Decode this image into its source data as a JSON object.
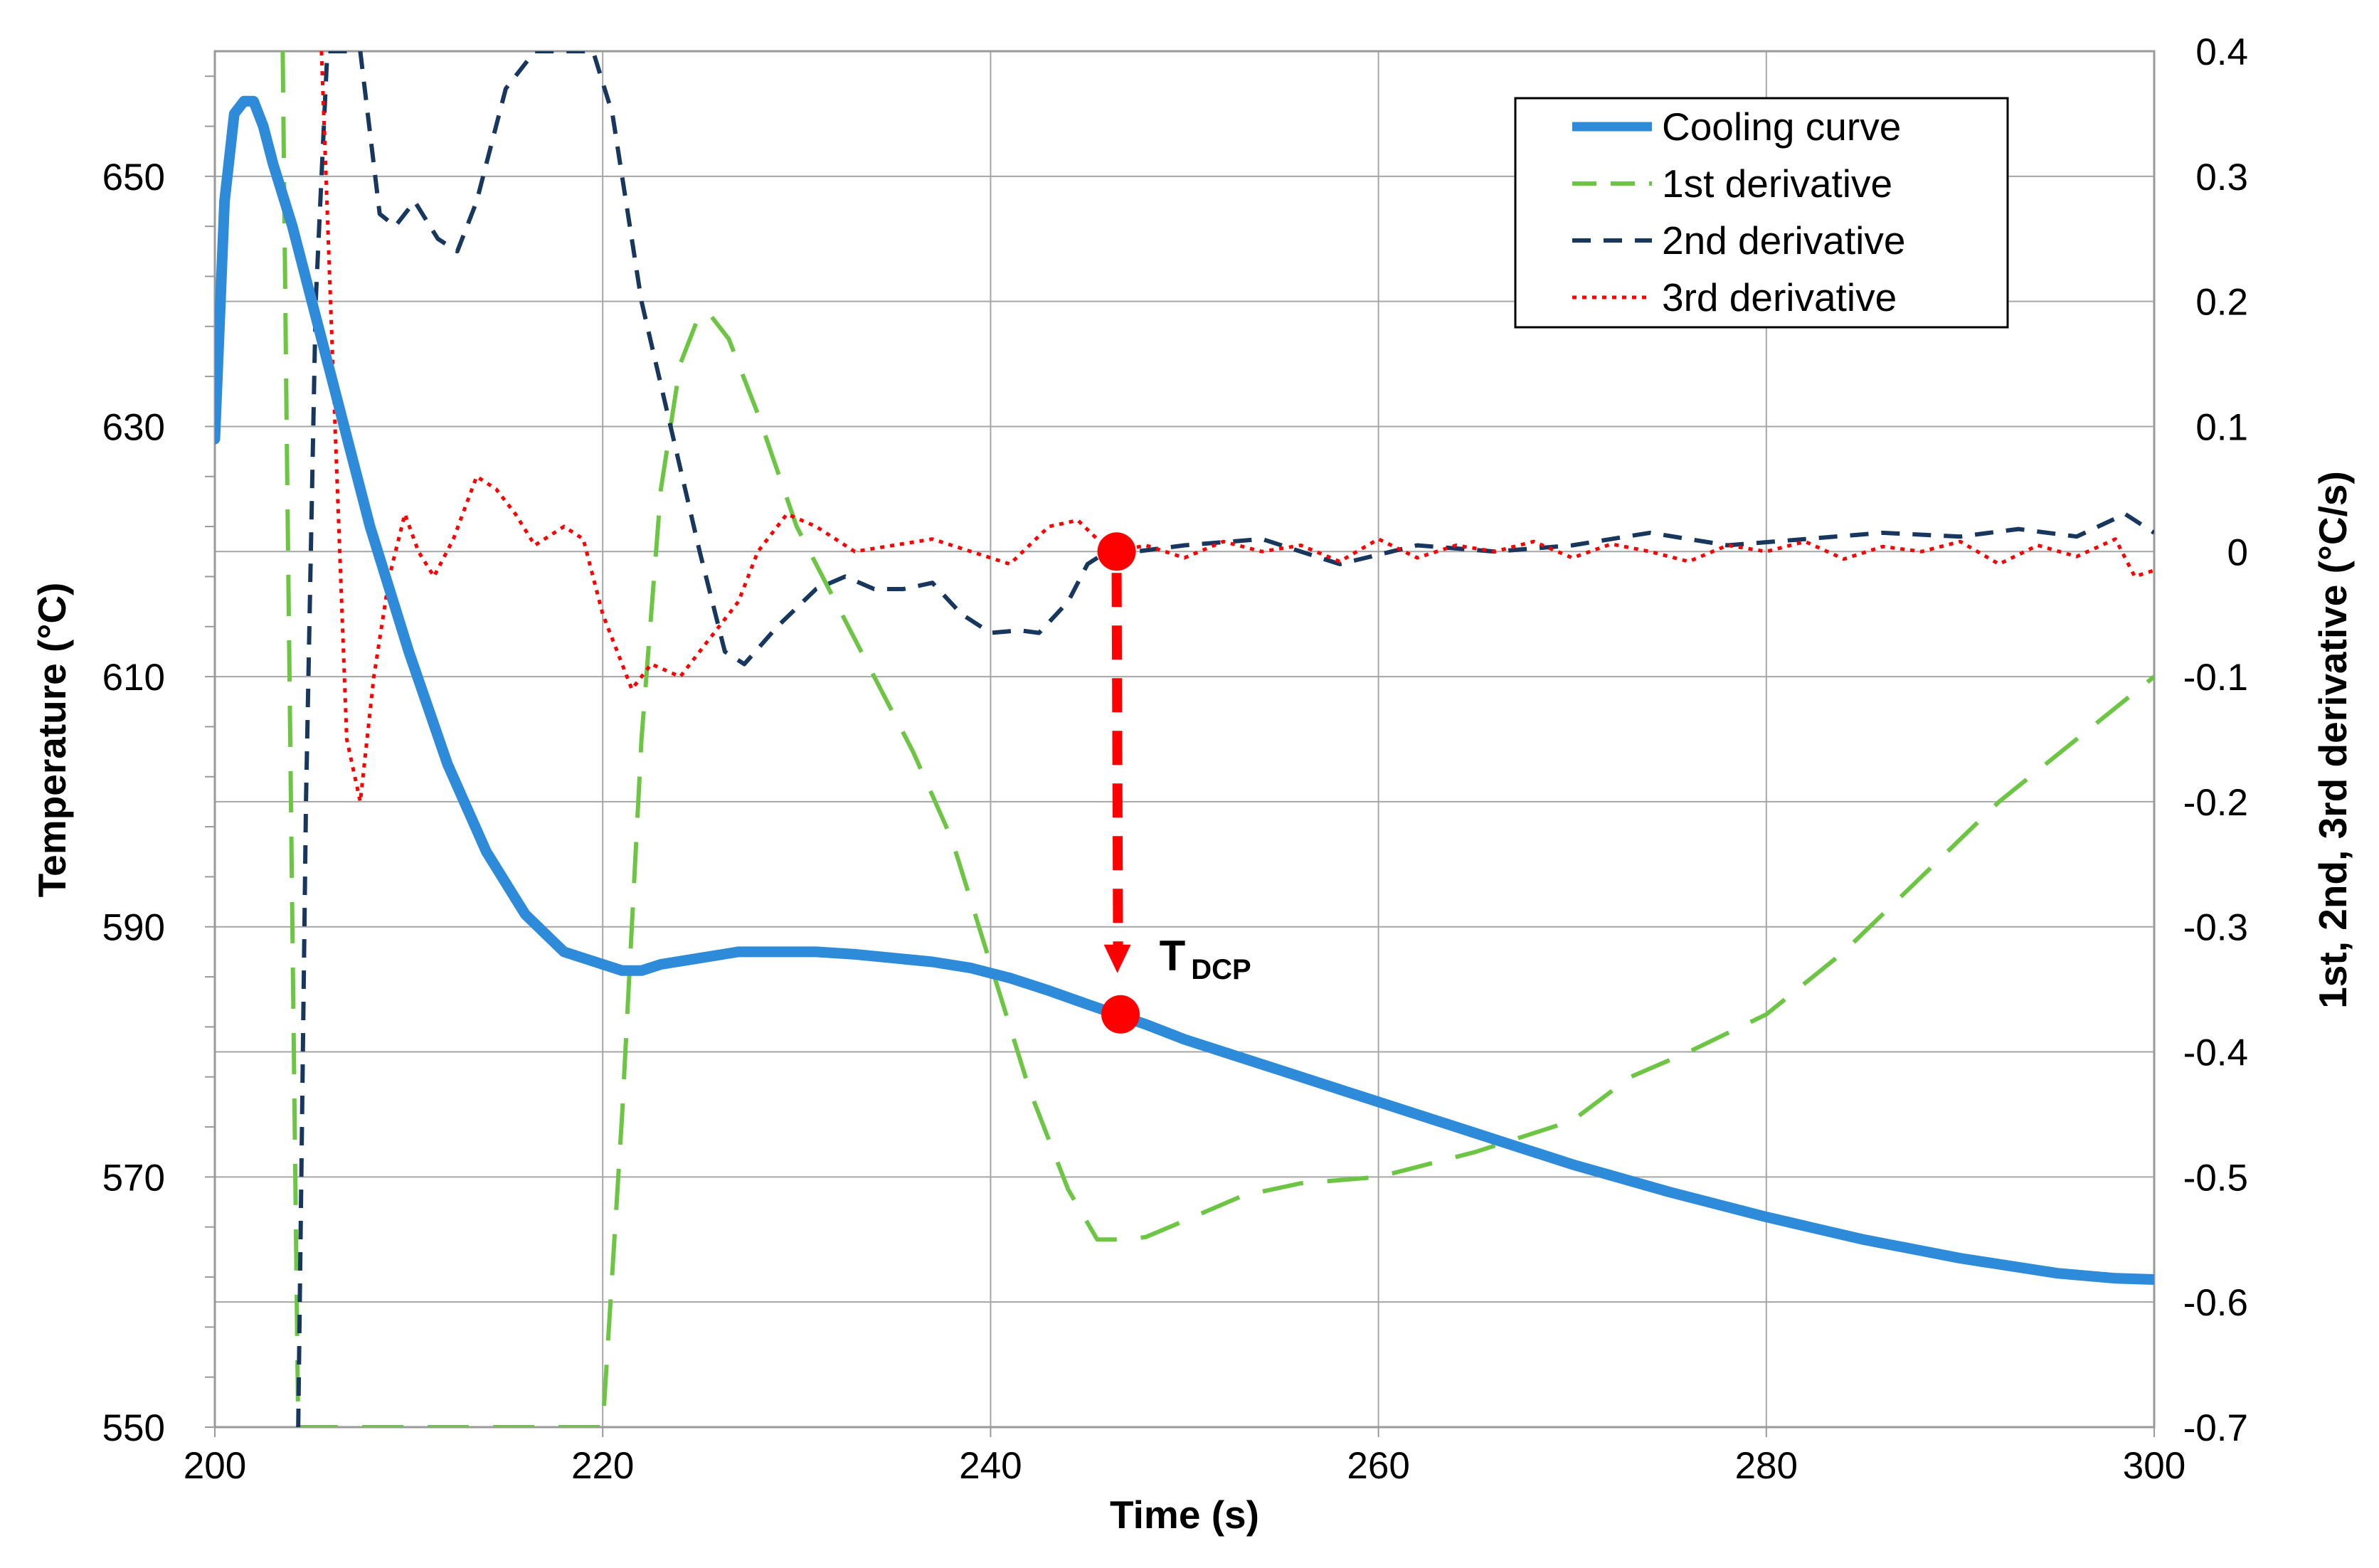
{
  "chart_data": {
    "type": "line",
    "title": "",
    "xlabel": "Time (s)",
    "ylabel": "Temperature  (°C)",
    "y2label": "1st, 2nd, 3rd derivative (°C/s)",
    "xlim": [
      200,
      300
    ],
    "ylim": [
      550,
      660
    ],
    "y2lim": [
      -0.7,
      0.4
    ],
    "x_ticks": [
      200,
      220,
      240,
      260,
      280,
      300
    ],
    "y_ticks": [
      550,
      570,
      590,
      610,
      630,
      650
    ],
    "y2_ticks": [
      -0.7,
      -0.6,
      -0.5,
      -0.4,
      -0.3,
      -0.2,
      -0.1,
      0,
      0.1,
      0.2,
      0.3,
      0.4
    ],
    "x_tick_labels": [
      "200",
      "220",
      "240",
      "260",
      "280",
      "300"
    ],
    "y_tick_labels": [
      "550",
      "570",
      "590",
      "610",
      "630",
      "650"
    ],
    "y2_tick_labels": [
      "-0.7",
      "-0.6",
      "-0.5",
      "-0.4",
      "-0.3",
      "-0.2",
      "-0.1",
      "0",
      "0.1",
      "0.2",
      "0.3",
      "0.4"
    ],
    "grid": true,
    "legend_position": "top-right",
    "series": [
      {
        "name": "Cooling curve",
        "axis": "left",
        "color": "#2e8bd9",
        "style": "solid",
        "x": [
          200,
          200.5,
          201,
          201.5,
          202,
          202.5,
          203,
          204,
          205,
          206,
          207,
          208,
          210,
          212,
          214,
          216,
          218,
          220,
          221,
          222,
          223,
          225,
          227,
          229,
          231,
          233,
          235,
          237,
          239,
          241,
          243,
          245,
          246.5,
          248,
          250,
          255,
          260,
          265,
          270,
          275,
          280,
          285,
          290,
          295,
          298,
          300
        ],
        "values": [
          629,
          648,
          655,
          656,
          656,
          654,
          651,
          646,
          640,
          634,
          628,
          622,
          612,
          603,
          596,
          591,
          588,
          587,
          586.5,
          586.5,
          587,
          587.5,
          588,
          588,
          588,
          587.8,
          587.5,
          587.2,
          586.7,
          585.9,
          584.9,
          583.8,
          583,
          582.2,
          581,
          578.5,
          576,
          573.5,
          571,
          568.8,
          566.8,
          565,
          563.5,
          562.3,
          561.9,
          561.8
        ]
      },
      {
        "name": "1st derivative",
        "axis": "right",
        "color": "#6cc644",
        "style": "long-dash",
        "x": [
          203.5,
          203.7,
          204,
          204.3,
          220,
          221,
          222,
          223,
          224,
          225,
          225.5,
          226.5,
          228,
          230,
          232,
          234,
          236,
          238,
          240,
          242,
          244,
          245.5,
          247,
          248,
          250,
          253,
          256,
          260,
          265,
          270,
          273,
          276,
          280,
          284,
          288,
          292,
          296,
          300
        ],
        "values": [
          0.4,
          0.1,
          -0.3,
          -0.7,
          -0.7,
          -0.45,
          -0.15,
          0.05,
          0.15,
          0.19,
          0.19,
          0.17,
          0.11,
          0.02,
          -0.04,
          -0.1,
          -0.16,
          -0.23,
          -0.33,
          -0.43,
          -0.51,
          -0.55,
          -0.55,
          -0.548,
          -0.535,
          -0.515,
          -0.505,
          -0.5,
          -0.48,
          -0.455,
          -0.42,
          -0.4,
          -0.37,
          -0.32,
          -0.26,
          -0.2,
          -0.15,
          -0.1
        ]
      },
      {
        "name": "2nd derivative",
        "axis": "right",
        "color": "#17375e",
        "style": "dash",
        "x": [
          204.3,
          204.7,
          205.2,
          205.8,
          206.5,
          207.5,
          208.5,
          209.3,
          210.3,
          211.5,
          212.5,
          213.5,
          215,
          216.5,
          218,
          219.5,
          220.5,
          222,
          223.5,
          225,
          226.3,
          227.3,
          229,
          231,
          232.5,
          234,
          235.5,
          237,
          238.5,
          240,
          241.5,
          242.5,
          244,
          245,
          246,
          247.5,
          250,
          254,
          258,
          262,
          266,
          270,
          274,
          278,
          282,
          286,
          290,
          293,
          296,
          298.5,
          300
        ],
        "values": [
          -0.7,
          -0.2,
          0.2,
          0.4,
          0.4,
          0.4,
          0.27,
          0.26,
          0.28,
          0.25,
          0.24,
          0.28,
          0.37,
          0.4,
          0.4,
          0.4,
          0.35,
          0.2,
          0.1,
          0.0,
          -0.08,
          -0.09,
          -0.06,
          -0.03,
          -0.02,
          -0.03,
          -0.03,
          -0.025,
          -0.05,
          -0.065,
          -0.063,
          -0.065,
          -0.04,
          -0.01,
          0.0,
          0.0,
          0.005,
          0.01,
          -0.01,
          0.005,
          0.0,
          0.005,
          0.015,
          0.005,
          0.01,
          0.015,
          0.012,
          0.018,
          0.012,
          0.03,
          0.015
        ]
      },
      {
        "name": "3rd derivative",
        "axis": "right",
        "color": "#ff0000",
        "style": "dot",
        "x": [
          205.5,
          206.2,
          206.8,
          207.5,
          208.2,
          209,
          209.8,
          210.5,
          211.3,
          212.3,
          213.5,
          214.5,
          215.5,
          216.5,
          218,
          219,
          220,
          221.5,
          222.5,
          224,
          225.5,
          227,
          228,
          229.5,
          231,
          233,
          235,
          237,
          239,
          241,
          243,
          244.5,
          245.5,
          246.5,
          248,
          250,
          252,
          254,
          256,
          258,
          260,
          262,
          264,
          266,
          268,
          270,
          272,
          274,
          276,
          278,
          280,
          282,
          284,
          286,
          288,
          290,
          292,
          294,
          296,
          298,
          299,
          300
        ],
        "values": [
          0.4,
          0.1,
          -0.15,
          -0.2,
          -0.1,
          -0.02,
          0.03,
          0.0,
          -0.02,
          0.01,
          0.06,
          0.05,
          0.03,
          0.005,
          0.02,
          0.01,
          -0.05,
          -0.11,
          -0.09,
          -0.1,
          -0.07,
          -0.04,
          0.0,
          0.03,
          0.02,
          0.0,
          0.005,
          0.01,
          0.0,
          -0.01,
          0.02,
          0.025,
          0.01,
          0.0,
          0.005,
          -0.005,
          0.008,
          0.0,
          0.005,
          -0.008,
          0.01,
          -0.005,
          0.005,
          0.0,
          0.008,
          -0.005,
          0.006,
          0.0,
          -0.008,
          0.005,
          0.0,
          0.008,
          -0.006,
          0.004,
          0.0,
          0.008,
          -0.01,
          0.005,
          -0.004,
          0.01,
          -0.02,
          -0.015
        ]
      }
    ],
    "annotations": [
      {
        "text": "T",
        "subscript": "DCP",
        "x": 246.7,
        "y": 583.0,
        "source_x": 246.5,
        "source_y2": 0.0
      }
    ]
  }
}
